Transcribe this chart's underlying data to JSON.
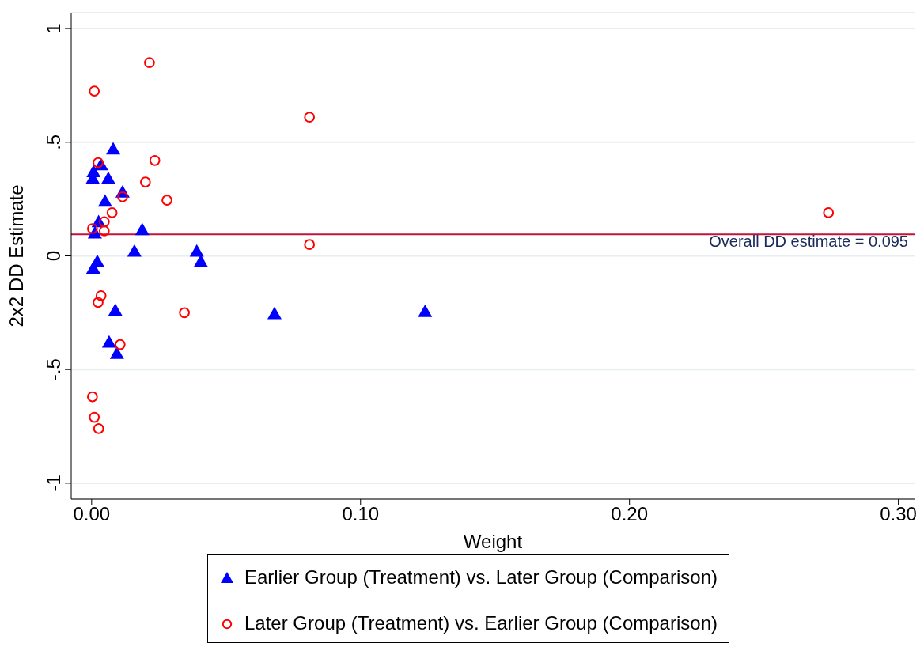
{
  "chart_data": {
    "type": "scatter",
    "xlabel": "Weight",
    "ylabel": "2x2 DD Estimate",
    "xlim": [
      -0.0076,
      0.306
    ],
    "xticks": [
      {
        "value": 0,
        "label": "0.00"
      },
      {
        "value": 0.1,
        "label": "0.10"
      },
      {
        "value": 0.2,
        "label": "0.20"
      },
      {
        "value": 0.3,
        "label": "0.30"
      }
    ],
    "ylim": [
      -1.07,
      1.07
    ],
    "yticks": [
      {
        "value": -1,
        "label": "-1"
      },
      {
        "value": -0.5,
        "label": "-.5"
      },
      {
        "value": 0,
        "label": "0"
      },
      {
        "value": 0.5,
        "label": ".5"
      },
      {
        "value": 1,
        "label": "1"
      }
    ],
    "grid": "y",
    "legend": "bottom",
    "ref_lines": [
      {
        "axis": "y",
        "value": 0.095,
        "label": "Overall DD estimate = 0.095",
        "color": "#c0143c"
      }
    ],
    "series": [
      {
        "name": "Earlier Group (Treatment) vs. Later Group (Comparison)",
        "color": "#0000ff",
        "marker": "triangle",
        "x": [
          0.008,
          0.0035,
          0.0007,
          0.0004,
          0.0062,
          0.0115,
          0.005,
          0.0026,
          0.0012,
          0.0188,
          0.0159,
          0.0391,
          0.0406,
          0.0021,
          0.0006,
          0.0088,
          0.0065,
          0.0094,
          0.068,
          0.124
        ],
        "values": [
          0.47,
          0.4,
          0.37,
          0.34,
          0.34,
          0.28,
          0.24,
          0.15,
          0.1,
          0.115,
          0.02,
          0.02,
          -0.025,
          -0.025,
          -0.055,
          -0.24,
          -0.38,
          -0.43,
          -0.255,
          -0.245
        ]
      },
      {
        "name": "Later Group (Treatment) vs. Earlier Group (Comparison)",
        "color": "#ff0000",
        "marker": "circle",
        "x": [
          0.0215,
          0.001,
          0.081,
          0.0235,
          0.274,
          0.081,
          0.02,
          0.028,
          0.0345,
          0.0024,
          0.0115,
          0.0076,
          0.0047,
          0.0003,
          0.0047,
          0.0035,
          0.0024,
          0.0106,
          0.0003,
          0.001,
          0.0026
        ],
        "values": [
          0.85,
          0.725,
          0.61,
          0.42,
          0.19,
          0.05,
          0.325,
          0.245,
          -0.25,
          0.41,
          0.26,
          0.19,
          0.15,
          0.12,
          0.11,
          -0.175,
          -0.205,
          -0.39,
          -0.62,
          -0.71,
          -0.76
        ]
      }
    ]
  }
}
